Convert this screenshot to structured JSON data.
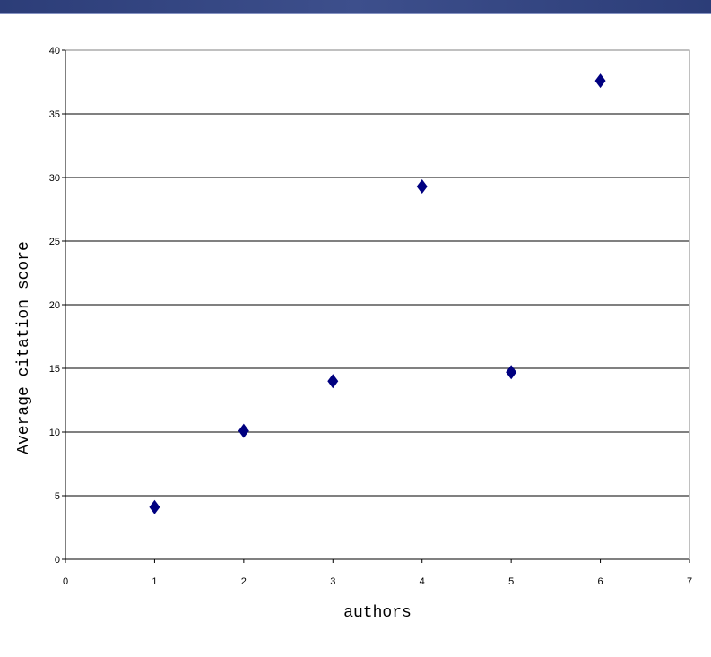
{
  "chart_data": {
    "type": "scatter",
    "title": "",
    "xlabel": "authors",
    "ylabel": "Average citation score",
    "xlim": [
      0,
      7
    ],
    "ylim": [
      0,
      40
    ],
    "x_ticks": [
      0,
      1,
      2,
      3,
      4,
      5,
      6,
      7
    ],
    "y_ticks": [
      0,
      5,
      10,
      15,
      20,
      25,
      30,
      35,
      40
    ],
    "grid": "horizontal",
    "marker": "diamond",
    "marker_color": "#000080",
    "points": [
      {
        "x": 1,
        "y": 4.1
      },
      {
        "x": 2,
        "y": 10.1
      },
      {
        "x": 3,
        "y": 14.0
      },
      {
        "x": 4,
        "y": 29.3
      },
      {
        "x": 5,
        "y": 14.7
      },
      {
        "x": 6,
        "y": 37.6
      }
    ]
  }
}
